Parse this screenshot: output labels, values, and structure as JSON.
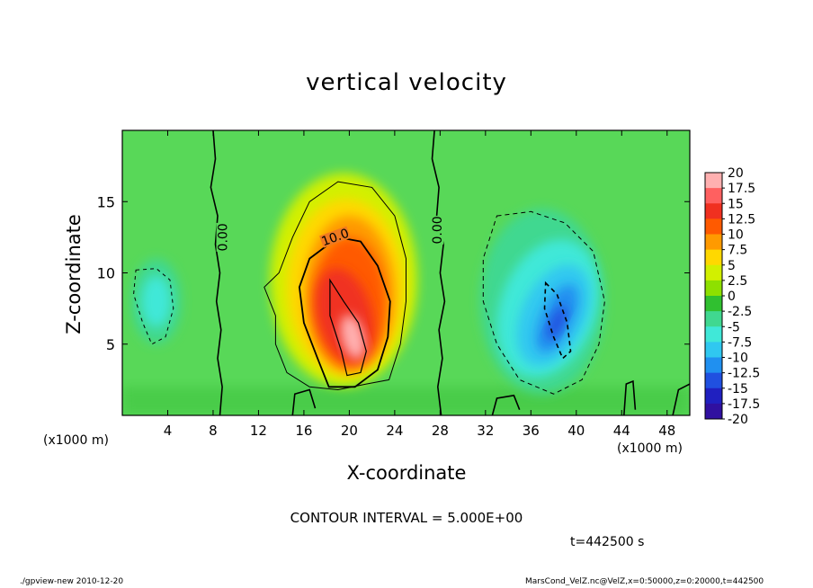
{
  "chart_data": {
    "type": "heatmap",
    "title": "vertical velocity",
    "xlabel": "X-coordinate",
    "ylabel": "Z-coordinate",
    "x_unit_label": "(x1000 m)",
    "xlim": [
      0,
      50
    ],
    "ylim": [
      0,
      20
    ],
    "x_ticks": [
      "4",
      "8",
      "12",
      "16",
      "20",
      "24",
      "28",
      "32",
      "36",
      "40",
      "44",
      "48"
    ],
    "y_ticks": [
      "5",
      "10",
      "15"
    ],
    "colorbar": {
      "labels": [
        "20",
        "17.5",
        "15",
        "12.5",
        "10",
        "7.5",
        "5",
        "2.5",
        "0",
        "-2.5",
        "-5",
        "-7.5",
        "-10",
        "-12.5",
        "-15",
        "-17.5",
        "-20"
      ],
      "colors": [
        "#ffb0b0",
        "#ff6060",
        "#f03020",
        "#ff5a00",
        "#ff9a00",
        "#ffd800",
        "#d2f000",
        "#8ee000",
        "#30c030",
        "#40d890",
        "#40e8d8",
        "#30c8f0",
        "#2090f0",
        "#2050e0",
        "#2020c0",
        "#3010a0",
        "#6010a8"
      ]
    },
    "contour_labels": [
      "0.00",
      "10.0",
      "0.00"
    ],
    "contour_interval_label": "CONTOUR INTERVAL = 5.000E+00",
    "time_label": "t=442500 s",
    "features": [
      {
        "kind": "updraft",
        "x": 20,
        "z": 8,
        "peak_value": 20
      },
      {
        "kind": "downdraft",
        "x": 38,
        "z": 7,
        "min_value": -12.5
      },
      {
        "kind": "downdraft",
        "x": 3,
        "z": 8,
        "min_value": -7.5
      }
    ]
  },
  "footer": {
    "left": "./gpview-new   2010-12-20",
    "right": "MarsCond_VelZ.nc@VelZ,x=0:50000,z=0:20000,t=442500"
  }
}
